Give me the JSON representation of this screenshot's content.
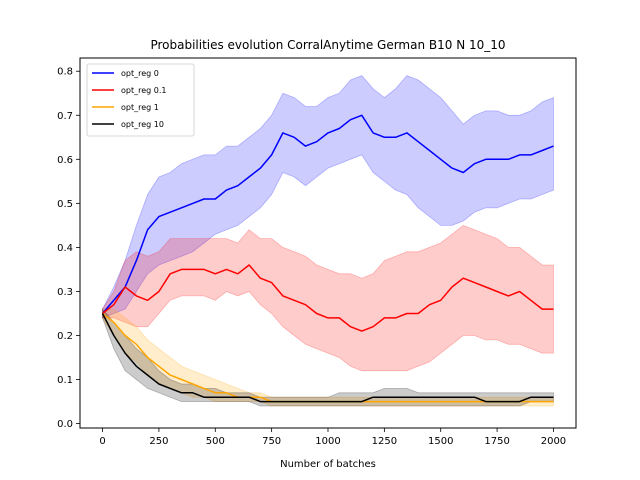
{
  "chart_data": {
    "type": "line",
    "title": "Probabilities evolution CorralAnytime German B10 N 10_10",
    "xlabel": "Number of batches",
    "ylabel": "",
    "xlim": [
      -100,
      2100
    ],
    "ylim": [
      -0.01,
      0.83
    ],
    "x_ticks": [
      0,
      250,
      500,
      750,
      1000,
      1250,
      1500,
      1750,
      2000
    ],
    "y_ticks": [
      0.0,
      0.1,
      0.2,
      0.3,
      0.4,
      0.5,
      0.6,
      0.7,
      0.8
    ],
    "x_tick_labels": [
      "0",
      "250",
      "500",
      "750",
      "1000",
      "1250",
      "1500",
      "1750",
      "2000"
    ],
    "y_tick_labels": [
      "0.0",
      "0.1",
      "0.2",
      "0.3",
      "0.4",
      "0.5",
      "0.6",
      "0.7",
      "0.8"
    ],
    "grid": false,
    "legend_position": "top-left",
    "x": [
      0,
      50,
      100,
      150,
      200,
      250,
      300,
      350,
      400,
      450,
      500,
      550,
      600,
      650,
      700,
      750,
      800,
      850,
      900,
      950,
      1000,
      1050,
      1100,
      1150,
      1200,
      1250,
      1300,
      1350,
      1400,
      1450,
      1500,
      1550,
      1600,
      1650,
      1700,
      1750,
      1800,
      1850,
      1900,
      1950,
      2000
    ],
    "series": [
      {
        "name": "opt_reg 0",
        "color": "#0000ff",
        "band_color": "#0000ff",
        "values": [
          0.25,
          0.28,
          0.31,
          0.37,
          0.44,
          0.47,
          0.48,
          0.49,
          0.5,
          0.51,
          0.51,
          0.53,
          0.54,
          0.56,
          0.58,
          0.61,
          0.66,
          0.65,
          0.63,
          0.64,
          0.66,
          0.67,
          0.69,
          0.7,
          0.66,
          0.65,
          0.65,
          0.66,
          0.64,
          0.62,
          0.6,
          0.58,
          0.57,
          0.59,
          0.6,
          0.6,
          0.6,
          0.61,
          0.61,
          0.62,
          0.63
        ],
        "lower": [
          0.24,
          0.25,
          0.26,
          0.3,
          0.34,
          0.36,
          0.37,
          0.38,
          0.39,
          0.41,
          0.43,
          0.44,
          0.45,
          0.47,
          0.49,
          0.52,
          0.57,
          0.56,
          0.54,
          0.56,
          0.58,
          0.59,
          0.6,
          0.61,
          0.57,
          0.55,
          0.53,
          0.52,
          0.49,
          0.47,
          0.45,
          0.45,
          0.46,
          0.48,
          0.49,
          0.49,
          0.5,
          0.51,
          0.51,
          0.52,
          0.53
        ],
        "upper": [
          0.26,
          0.31,
          0.37,
          0.45,
          0.52,
          0.56,
          0.57,
          0.59,
          0.6,
          0.61,
          0.61,
          0.63,
          0.63,
          0.65,
          0.67,
          0.7,
          0.75,
          0.74,
          0.72,
          0.72,
          0.74,
          0.75,
          0.78,
          0.79,
          0.76,
          0.74,
          0.76,
          0.79,
          0.78,
          0.76,
          0.74,
          0.71,
          0.68,
          0.7,
          0.71,
          0.71,
          0.7,
          0.7,
          0.71,
          0.73,
          0.74
        ]
      },
      {
        "name": "opt_reg 0.1",
        "color": "#ff0000",
        "band_color": "#ff0000",
        "values": [
          0.25,
          0.27,
          0.31,
          0.29,
          0.28,
          0.3,
          0.34,
          0.35,
          0.35,
          0.35,
          0.34,
          0.35,
          0.34,
          0.36,
          0.33,
          0.32,
          0.29,
          0.28,
          0.27,
          0.25,
          0.24,
          0.24,
          0.22,
          0.21,
          0.22,
          0.24,
          0.24,
          0.25,
          0.25,
          0.27,
          0.28,
          0.31,
          0.33,
          0.32,
          0.31,
          0.3,
          0.29,
          0.3,
          0.28,
          0.26,
          0.26
        ],
        "lower": [
          0.24,
          0.24,
          0.23,
          0.22,
          0.22,
          0.25,
          0.28,
          0.29,
          0.29,
          0.29,
          0.28,
          0.3,
          0.29,
          0.3,
          0.27,
          0.25,
          0.22,
          0.2,
          0.18,
          0.17,
          0.16,
          0.15,
          0.13,
          0.12,
          0.12,
          0.12,
          0.12,
          0.12,
          0.13,
          0.14,
          0.16,
          0.18,
          0.2,
          0.2,
          0.19,
          0.19,
          0.18,
          0.18,
          0.17,
          0.16,
          0.16
        ],
        "upper": [
          0.26,
          0.3,
          0.37,
          0.39,
          0.38,
          0.39,
          0.42,
          0.42,
          0.42,
          0.42,
          0.42,
          0.42,
          0.41,
          0.44,
          0.42,
          0.42,
          0.4,
          0.39,
          0.38,
          0.36,
          0.35,
          0.34,
          0.34,
          0.33,
          0.34,
          0.37,
          0.38,
          0.39,
          0.39,
          0.4,
          0.41,
          0.43,
          0.45,
          0.44,
          0.43,
          0.42,
          0.4,
          0.4,
          0.38,
          0.36,
          0.36
        ]
      },
      {
        "name": "opt_reg 1",
        "color": "#ffa500",
        "band_color": "#ffa500",
        "values": [
          0.25,
          0.23,
          0.2,
          0.18,
          0.15,
          0.13,
          0.11,
          0.1,
          0.09,
          0.08,
          0.07,
          0.07,
          0.06,
          0.06,
          0.06,
          0.05,
          0.05,
          0.05,
          0.05,
          0.05,
          0.05,
          0.05,
          0.05,
          0.05,
          0.05,
          0.05,
          0.05,
          0.05,
          0.05,
          0.05,
          0.05,
          0.05,
          0.05,
          0.05,
          0.05,
          0.05,
          0.05,
          0.05,
          0.05,
          0.05,
          0.05
        ],
        "lower": [
          0.24,
          0.2,
          0.16,
          0.14,
          0.11,
          0.09,
          0.08,
          0.07,
          0.06,
          0.06,
          0.05,
          0.05,
          0.05,
          0.05,
          0.05,
          0.04,
          0.04,
          0.04,
          0.04,
          0.04,
          0.04,
          0.04,
          0.04,
          0.04,
          0.04,
          0.04,
          0.04,
          0.04,
          0.04,
          0.04,
          0.04,
          0.04,
          0.04,
          0.04,
          0.04,
          0.04,
          0.04,
          0.04,
          0.04,
          0.04,
          0.04
        ],
        "upper": [
          0.26,
          0.26,
          0.24,
          0.22,
          0.19,
          0.17,
          0.15,
          0.13,
          0.12,
          0.11,
          0.1,
          0.09,
          0.08,
          0.07,
          0.07,
          0.06,
          0.06,
          0.06,
          0.06,
          0.06,
          0.06,
          0.06,
          0.06,
          0.06,
          0.06,
          0.06,
          0.06,
          0.06,
          0.06,
          0.06,
          0.06,
          0.06,
          0.06,
          0.06,
          0.06,
          0.06,
          0.06,
          0.06,
          0.06,
          0.06,
          0.06
        ]
      },
      {
        "name": "opt_reg 10",
        "color": "#000000",
        "band_color": "#000000",
        "values": [
          0.25,
          0.2,
          0.16,
          0.13,
          0.11,
          0.09,
          0.08,
          0.07,
          0.07,
          0.06,
          0.06,
          0.06,
          0.06,
          0.06,
          0.05,
          0.05,
          0.05,
          0.05,
          0.05,
          0.05,
          0.05,
          0.05,
          0.05,
          0.05,
          0.06,
          0.06,
          0.06,
          0.06,
          0.06,
          0.06,
          0.06,
          0.06,
          0.06,
          0.06,
          0.05,
          0.05,
          0.05,
          0.05,
          0.06,
          0.06,
          0.06
        ],
        "lower": [
          0.24,
          0.17,
          0.12,
          0.1,
          0.08,
          0.07,
          0.06,
          0.05,
          0.05,
          0.05,
          0.05,
          0.05,
          0.05,
          0.05,
          0.04,
          0.04,
          0.04,
          0.04,
          0.04,
          0.04,
          0.04,
          0.04,
          0.04,
          0.04,
          0.04,
          0.04,
          0.04,
          0.04,
          0.04,
          0.04,
          0.04,
          0.04,
          0.04,
          0.04,
          0.04,
          0.04,
          0.04,
          0.04,
          0.05,
          0.05,
          0.05
        ],
        "upper": [
          0.26,
          0.23,
          0.2,
          0.17,
          0.15,
          0.12,
          0.1,
          0.09,
          0.09,
          0.08,
          0.08,
          0.07,
          0.07,
          0.07,
          0.06,
          0.06,
          0.06,
          0.06,
          0.06,
          0.06,
          0.06,
          0.07,
          0.07,
          0.07,
          0.07,
          0.08,
          0.08,
          0.08,
          0.07,
          0.07,
          0.07,
          0.07,
          0.07,
          0.07,
          0.07,
          0.07,
          0.07,
          0.07,
          0.07,
          0.07,
          0.07
        ]
      }
    ]
  }
}
